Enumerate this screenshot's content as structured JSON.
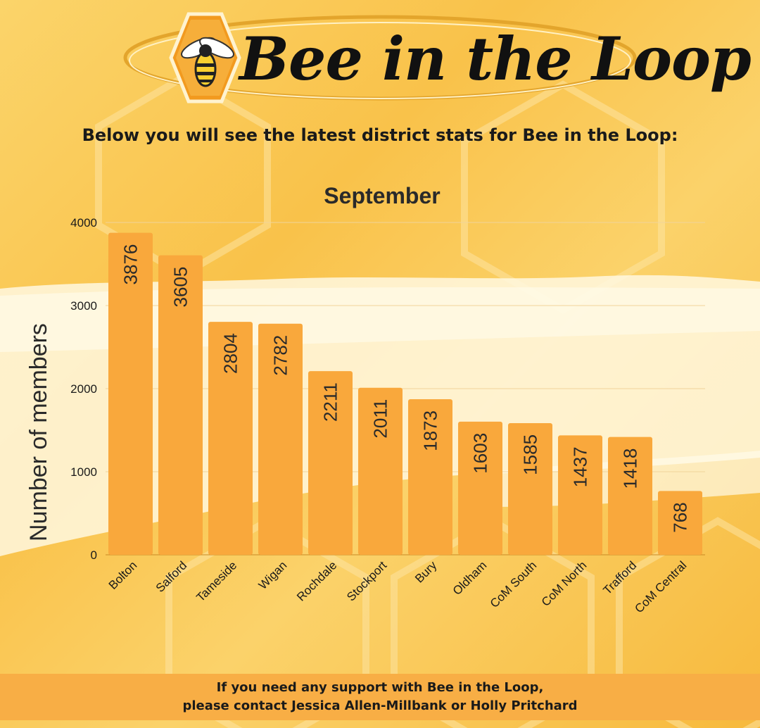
{
  "brand": {
    "name": "Bee in the Loop",
    "logo_icon": "bee-icon",
    "colors": {
      "hex_orange": "#f29a1f",
      "ring": "#e3a52c",
      "bar": "#f9a83c"
    }
  },
  "subtitle": "Below you will see the latest district stats for Bee in the Loop:",
  "chart_data": {
    "type": "bar",
    "title": "September",
    "xlabel": "",
    "ylabel": "Number of members",
    "ylim": [
      0,
      4000
    ],
    "yticks": [
      0,
      1000,
      2000,
      3000,
      4000
    ],
    "grid": true,
    "categories": [
      "Bolton",
      "Salford",
      "Tameside",
      "Wigan",
      "Rochdale",
      "Stockport",
      "Bury",
      "Oldham",
      "CoM South",
      "CoM North",
      "Trafford",
      "CoM Central"
    ],
    "values": [
      3876,
      3605,
      2804,
      2782,
      2211,
      2011,
      1873,
      1603,
      1585,
      1437,
      1418,
      768
    ]
  },
  "footer": {
    "line1": "If you need any support with Bee in the Loop,",
    "line2": "please contact Jessica Allen-Millbank or Holly Pritchard"
  }
}
